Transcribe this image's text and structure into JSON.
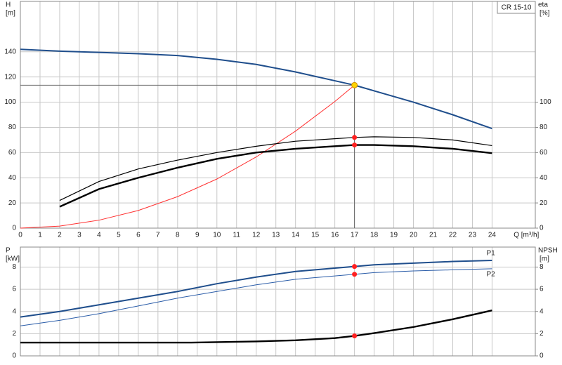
{
  "chart_data": [
    {
      "type": "line",
      "label": "CR 15-10",
      "ylabel": "H",
      "yunit": "[m]",
      "y2label": "eta",
      "y2unit": "[%]",
      "xlabel": "Q [m³/h]",
      "xlim": [
        0,
        26.2
      ],
      "xticks": [
        0,
        1,
        2,
        3,
        4,
        5,
        6,
        7,
        8,
        9,
        10,
        11,
        12,
        13,
        14,
        15,
        16,
        17,
        18,
        19,
        20,
        21,
        22,
        23,
        24
      ],
      "ylim": [
        0,
        180
      ],
      "yticks": [
        0,
        20,
        40,
        60,
        80,
        100,
        120,
        140
      ],
      "y2lim": [
        0,
        180
      ],
      "y2ticks": [
        0,
        20,
        40,
        60,
        80,
        100
      ],
      "grid": true,
      "series": [
        {
          "color": "#1f4e8c",
          "x": [
            0,
            2,
            4,
            6,
            8,
            10,
            12,
            14,
            16,
            17,
            18,
            20,
            22,
            24
          ],
          "values": [
            142,
            140.5,
            139.5,
            138.5,
            137,
            134,
            130,
            124,
            117,
            113.5,
            109,
            100,
            90,
            79
          ]
        },
        {
          "color": "#ff3030",
          "x": [
            0,
            2,
            4,
            6,
            8,
            10,
            12,
            14,
            16,
            17
          ],
          "values": [
            0,
            1.6,
            6.3,
            14,
            25,
            39,
            56.5,
            77,
            100.5,
            113.5
          ]
        },
        {
          "color": "#000000",
          "axis": "y2",
          "x": [
            2,
            4,
            6,
            8,
            10,
            12,
            14,
            16,
            17,
            18,
            20,
            22,
            24
          ],
          "values": [
            22,
            37,
            47,
            54,
            60,
            65,
            69,
            71,
            72,
            72.5,
            72,
            70,
            65.5
          ]
        },
        {
          "color": "#000000",
          "axis": "y2",
          "x": [
            2,
            4,
            6,
            8,
            10,
            12,
            14,
            16,
            17,
            18,
            20,
            22,
            24
          ],
          "values": [
            17,
            31,
            40,
            48,
            55,
            60,
            63,
            65,
            66,
            66,
            65,
            63,
            59.5
          ]
        }
      ],
      "markers": [
        {
          "x": 17,
          "y": 113.5,
          "color": "#ffd400"
        },
        {
          "x": 17,
          "y": 72,
          "color": "#ff2020"
        },
        {
          "x": 17,
          "y": 66,
          "color": "#ff2020"
        }
      ]
    },
    {
      "type": "line",
      "ylabel": "P",
      "yunit": "[kW]",
      "y2label": "NPSH",
      "y2unit": "[m]",
      "xlim": [
        0,
        26.2
      ],
      "xticks": [
        0,
        1,
        2,
        3,
        4,
        5,
        6,
        7,
        8,
        9,
        10,
        11,
        12,
        13,
        14,
        15,
        16,
        17,
        18,
        19,
        20,
        21,
        22,
        23,
        24
      ],
      "ylim": [
        0,
        9.8
      ],
      "yticks": [
        0,
        2,
        4,
        6,
        8
      ],
      "y2lim": [
        0,
        9.8
      ],
      "y2ticks": [
        0,
        2,
        4,
        6,
        8
      ],
      "grid": true,
      "series": [
        {
          "name": "P1",
          "color": "#1f4e8c",
          "x": [
            0,
            2,
            4,
            6,
            8,
            10,
            12,
            14,
            16,
            17,
            18,
            20,
            22,
            24
          ],
          "values": [
            3.5,
            4,
            4.6,
            5.2,
            5.8,
            6.5,
            7.1,
            7.6,
            7.9,
            8.05,
            8.2,
            8.35,
            8.5,
            8.6
          ]
        },
        {
          "name": "P2",
          "color": "#2a5ca8",
          "x": [
            0,
            2,
            4,
            6,
            8,
            10,
            12,
            14,
            16,
            17,
            18,
            20,
            22,
            24
          ],
          "values": [
            2.7,
            3.2,
            3.8,
            4.5,
            5.2,
            5.8,
            6.4,
            6.9,
            7.2,
            7.35,
            7.5,
            7.65,
            7.75,
            7.85
          ]
        },
        {
          "color": "#000000",
          "axis": "y2",
          "x": [
            0,
            8.7,
            12,
            14,
            16,
            17,
            18,
            20,
            22,
            24
          ],
          "values": [
            1.2,
            1.2,
            1.3,
            1.4,
            1.6,
            1.8,
            2.05,
            2.6,
            3.3,
            4.1
          ]
        }
      ],
      "markers": [
        {
          "x": 17,
          "y": 8.05,
          "color": "#ff2020"
        },
        {
          "x": 17,
          "y": 7.35,
          "color": "#ff2020"
        },
        {
          "x": 17,
          "y": 1.8,
          "color": "#ff2020"
        }
      ]
    }
  ]
}
